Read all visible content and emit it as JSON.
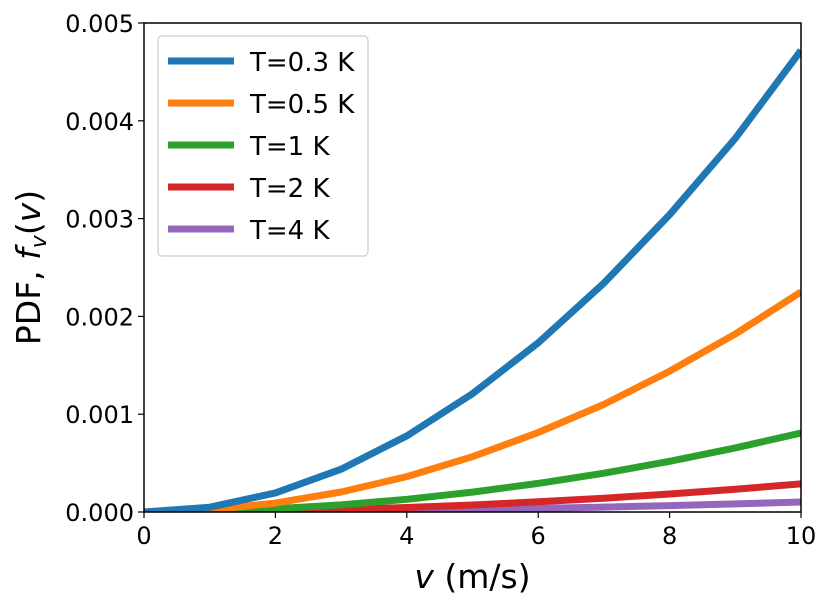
{
  "chart_data": {
    "type": "line",
    "xlabel_var": "v",
    "xlabel_unit": " (m/s)",
    "ylabel_prefix": "PDF, ",
    "ylabel_func": "f",
    "ylabel_sub": "v",
    "ylabel_arg": "v",
    "xlim": [
      0,
      10
    ],
    "ylim": [
      0,
      0.005
    ],
    "xticks": [
      0,
      2,
      4,
      6,
      8,
      10
    ],
    "xtick_labels": [
      "0",
      "2",
      "4",
      "6",
      "8",
      "10"
    ],
    "yticks": [
      0,
      0.001,
      0.002,
      0.003,
      0.004,
      0.005
    ],
    "ytick_labels": [
      "0.000",
      "0.001",
      "0.002",
      "0.003",
      "0.004",
      "0.005"
    ],
    "legend_position": "top-left",
    "x": [
      0,
      1,
      2,
      3,
      4,
      5,
      6,
      7,
      8,
      9,
      10
    ],
    "series": [
      {
        "name": "T=0.3 K",
        "color": "#1f77b4",
        "values": [
          0,
          4.87e-05,
          0.000195,
          0.000438,
          0.000778,
          0.00121,
          0.00173,
          0.00234,
          0.00304,
          0.00382,
          0.00472
        ]
      },
      {
        "name": "T=0.5 K",
        "color": "#ff7f0e",
        "values": [
          0,
          2.27e-05,
          9.05e-05,
          0.000204,
          0.000362,
          0.000565,
          0.000813,
          0.0011,
          0.00144,
          0.00182,
          0.00225
        ]
      },
      {
        "name": "T=1 K",
        "color": "#2ca02c",
        "values": [
          0,
          8.1e-06,
          3.24e-05,
          7.3e-05,
          0.00013,
          0.000203,
          0.000292,
          0.000397,
          0.000518,
          0.000655,
          0.000808
        ]
      },
      {
        "name": "T=2 K",
        "color": "#d62728",
        "values": [
          0,
          2.9e-06,
          1.15e-05,
          2.6e-05,
          4.6e-05,
          7.2e-05,
          0.000104,
          0.000141,
          0.000184,
          0.000233,
          0.000287
        ]
      },
      {
        "name": "T=4 K",
        "color": "#9467bd",
        "values": [
          0,
          1.02e-06,
          4.1e-06,
          9.2e-06,
          1.63e-05,
          2.55e-05,
          3.67e-05,
          5e-05,
          6.53e-05,
          8.26e-05,
          0.000102
        ]
      }
    ]
  }
}
